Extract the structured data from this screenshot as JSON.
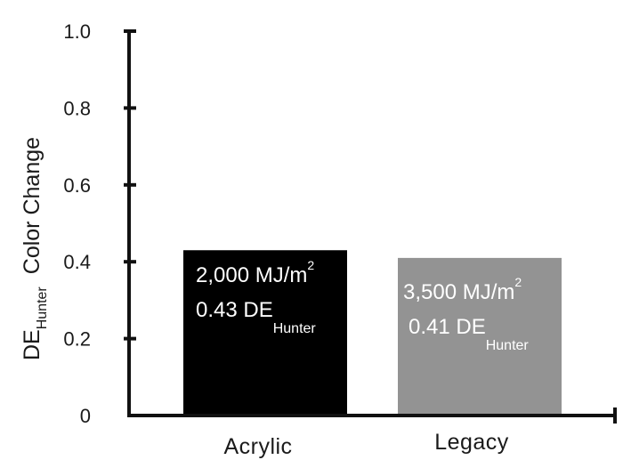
{
  "chart_data": {
    "type": "bar",
    "categories": [
      "Acrylic",
      "Legacy"
    ],
    "values": [
      0.43,
      0.41
    ],
    "ylim": [
      0,
      1.0
    ],
    "yticks": [
      "0",
      "0.2",
      "0.4",
      "0.6",
      "0.8",
      "1.0"
    ],
    "ytick_values": [
      0,
      0.2,
      0.4,
      0.6,
      0.8,
      1.0
    ],
    "ylabel": {
      "main": "DE",
      "subscript": "Hunter",
      "suffix": "Color Change"
    },
    "bar_colors": [
      "#000000",
      "#939393"
    ],
    "grid": false,
    "bar_annotations": [
      {
        "exposure": "2,000 MJ/m",
        "exposure_sup": "2",
        "value_text": "0.43 DE",
        "value_sub": "Hunter"
      },
      {
        "exposure": "3,500 MJ/m",
        "exposure_sup": "2",
        "value_text": "0.41 DE",
        "value_sub": "Hunter"
      }
    ]
  }
}
